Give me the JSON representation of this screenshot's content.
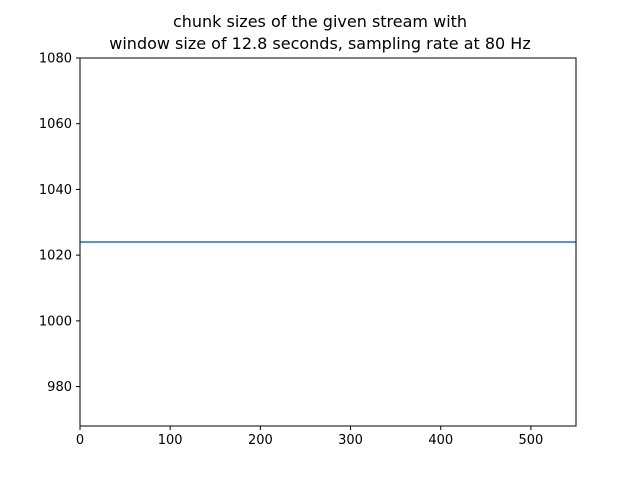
{
  "chart_data": {
    "type": "line",
    "title": [
      "chunk sizes of the given stream with",
      "window size of 12.8 seconds, sampling rate at 80 Hz"
    ],
    "xlabel": "",
    "ylabel": "",
    "xlim": [
      0,
      550
    ],
    "ylim": [
      968,
      1080
    ],
    "x_ticks": [
      0,
      100,
      200,
      300,
      400,
      500
    ],
    "y_ticks": [
      980,
      1000,
      1020,
      1040,
      1060,
      1080
    ],
    "grid": false,
    "legend": "none",
    "series": [
      {
        "color": "#1f77b4",
        "x": [
          0,
          550
        ],
        "y": [
          1024,
          1024
        ]
      }
    ]
  }
}
